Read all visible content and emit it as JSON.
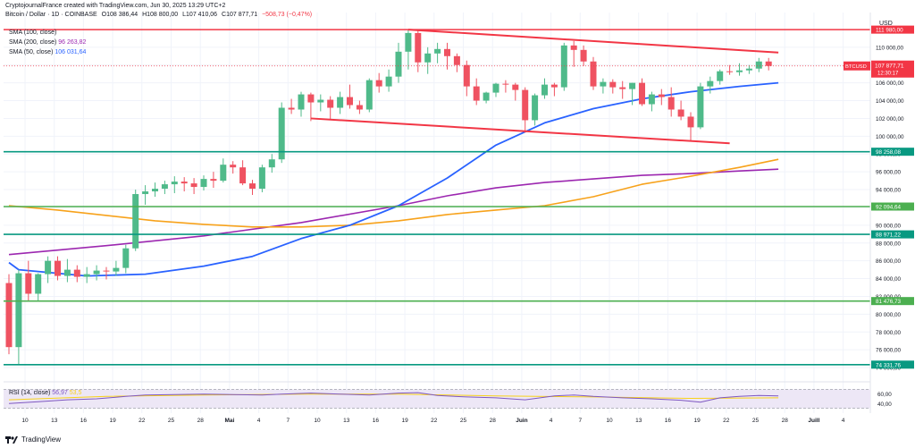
{
  "header": {
    "creator": "CryptojournalFrance created with TradingView.com, Jun 30, 2025 13:29 UTC+2",
    "symbol": "Bitcoin / Dollar · 1D · COINBASE",
    "o": "O108 386,44",
    "h": "H108 800,00",
    "l": "L107 410,06",
    "c": "C107 877,71",
    "chg": "−508,73 (−0,47%)"
  },
  "indicators": [
    {
      "label": "SMA (100, close)",
      "value": "",
      "color": "#f7a21b"
    },
    {
      "label": "SMA (200, close)",
      "value": "96 263,82",
      "color": "#9c27b0"
    },
    {
      "label": "SMA (50, close)",
      "value": "106 031,64",
      "color": "#2962ff"
    }
  ],
  "price_axis": {
    "currency": "USD",
    "ticks": [
      "110 000,00",
      "108 000,00",
      "106 000,00",
      "104 000,00",
      "102 000,00",
      "100 000,00",
      "98 000,00",
      "96 000,00",
      "94 000,00",
      "92 000,00",
      "90 000,00",
      "88 000,00",
      "86 000,00",
      "84 000,00",
      "82 000,00",
      "80 000,00",
      "78 000,00",
      "76 000,00",
      "74 000,00"
    ],
    "labels": [
      {
        "text": "111 980,00",
        "color": "#f23645"
      },
      {
        "text": "98 258,08",
        "color": "#089981"
      },
      {
        "text": "92 094,64",
        "color": "#4caf50"
      },
      {
        "text": "88 971,22",
        "color": "#089981"
      },
      {
        "text": "81 476,73",
        "color": "#4caf50"
      },
      {
        "text": "74 331,76",
        "color": "#089981"
      }
    ],
    "current": {
      "symbol": "BTCUSD",
      "price": "107 877,71",
      "countdown": "12:30:17",
      "color": "#f23645"
    },
    "rsi_ticks": [
      "60,00",
      "40,00"
    ]
  },
  "time_axis": [
    "10",
    "13",
    "16",
    "19",
    "22",
    "25",
    "28",
    "Mai",
    "4",
    "7",
    "10",
    "13",
    "16",
    "19",
    "22",
    "25",
    "28",
    "Juin",
    "4",
    "7",
    "10",
    "13",
    "16",
    "19",
    "22",
    "25",
    "28",
    "Juill",
    "4"
  ],
  "rsi": {
    "label": "RSI (14, close)",
    "value": "56,97",
    "sma_value": "53,5"
  },
  "footer": {
    "brand": "TradingView"
  },
  "chart_data": {
    "type": "candlestick",
    "interval": "1D",
    "ylim": [
      72500,
      113500
    ],
    "candles": [
      [
        83500,
        84500,
        75500,
        76300
      ],
      [
        76300,
        85000,
        74400,
        84600
      ],
      [
        84600,
        86000,
        81400,
        82300
      ],
      [
        82300,
        84600,
        81500,
        84500
      ],
      [
        84500,
        86500,
        83500,
        86000
      ],
      [
        86000,
        86500,
        83800,
        84300
      ],
      [
        84300,
        86200,
        83600,
        85000
      ],
      [
        85000,
        85500,
        83600,
        84200
      ],
      [
        84200,
        85300,
        83500,
        84500
      ],
      [
        84500,
        85500,
        83800,
        84900
      ],
      [
        84900,
        85300,
        83900,
        84800
      ],
      [
        84800,
        86000,
        84300,
        85200
      ],
      [
        85200,
        87800,
        84600,
        87400
      ],
      [
        87400,
        94000,
        87100,
        93500
      ],
      [
        93500,
        94500,
        92300,
        93800
      ],
      [
        93800,
        94800,
        93200,
        94100
      ],
      [
        94100,
        95000,
        93500,
        94600
      ],
      [
        94600,
        95500,
        93600,
        94900
      ],
      [
        94900,
        95400,
        93800,
        94700
      ],
      [
        94700,
        95300,
        93500,
        94300
      ],
      [
        94300,
        95600,
        93900,
        95200
      ],
      [
        95200,
        96000,
        94200,
        95000
      ],
      [
        95000,
        97500,
        94800,
        96800
      ],
      [
        96800,
        97200,
        95800,
        96500
      ],
      [
        96500,
        97300,
        94500,
        94700
      ],
      [
        94700,
        95100,
        93400,
        94100
      ],
      [
        94100,
        96800,
        93700,
        96500
      ],
      [
        96500,
        98000,
        95900,
        97400
      ],
      [
        97400,
        103800,
        97000,
        103200
      ],
      [
        103200,
        104200,
        102500,
        103000
      ],
      [
        103000,
        105000,
        102200,
        104700
      ],
      [
        104700,
        104900,
        101700,
        103800
      ],
      [
        103800,
        104700,
        102800,
        104100
      ],
      [
        104100,
        104500,
        101900,
        103200
      ],
      [
        103200,
        105000,
        102500,
        104400
      ],
      [
        104400,
        105800,
        103100,
        103500
      ],
      [
        103500,
        104000,
        102500,
        103000
      ],
      [
        103000,
        106500,
        102700,
        106300
      ],
      [
        106300,
        107100,
        104900,
        105600
      ],
      [
        105600,
        107500,
        105000,
        106700
      ],
      [
        106700,
        110500,
        106000,
        109500
      ],
      [
        109500,
        111980,
        107500,
        111600
      ],
      [
        111600,
        112000,
        107200,
        108300
      ],
      [
        108300,
        110000,
        107000,
        109300
      ],
      [
        109300,
        110500,
        108200,
        109800
      ],
      [
        109800,
        110500,
        107500,
        109000
      ],
      [
        109000,
        109300,
        107200,
        108000
      ],
      [
        108000,
        108500,
        104500,
        105600
      ],
      [
        105600,
        106500,
        103500,
        104000
      ],
      [
        104000,
        105000,
        103700,
        104900
      ],
      [
        104900,
        106000,
        104400,
        105900
      ],
      [
        105900,
        106300,
        104900,
        105800
      ],
      [
        105800,
        106000,
        104000,
        105200
      ],
      [
        105200,
        105500,
        100400,
        101800
      ],
      [
        101800,
        104800,
        101200,
        104600
      ],
      [
        104600,
        106500,
        104200,
        105800
      ],
      [
        105800,
        106000,
        104500,
        105500
      ],
      [
        105500,
        110500,
        105100,
        110200
      ],
      [
        110200,
        110700,
        107800,
        109700
      ],
      [
        109700,
        110200,
        107900,
        108400
      ],
      [
        108400,
        108900,
        105200,
        105600
      ],
      [
        105600,
        106500,
        104800,
        106100
      ],
      [
        106100,
        106400,
        104800,
        105500
      ],
      [
        105500,
        106200,
        104200,
        105300
      ],
      [
        105300,
        106000,
        103500,
        106000
      ],
      [
        106000,
        106500,
        103400,
        103600
      ],
      [
        103600,
        105000,
        102800,
        104700
      ],
      [
        104700,
        105300,
        103500,
        104400
      ],
      [
        104400,
        105500,
        102200,
        103000
      ],
      [
        103000,
        104000,
        101800,
        102200
      ],
      [
        102200,
        102700,
        99500,
        101000
      ],
      [
        101000,
        106000,
        100800,
        105600
      ],
      [
        105600,
        106700,
        104800,
        106200
      ],
      [
        106200,
        107500,
        105800,
        107300
      ],
      [
        107300,
        108000,
        106900,
        107200
      ],
      [
        107200,
        108200,
        106800,
        107400
      ],
      [
        107400,
        108000,
        107000,
        107600
      ],
      [
        107600,
        108800,
        107200,
        108400
      ],
      [
        108400,
        108800,
        107400,
        107900
      ]
    ],
    "sma50": [
      [
        0,
        85800
      ],
      [
        1,
        85000
      ],
      [
        8,
        84300
      ],
      [
        14,
        84500
      ],
      [
        20,
        85400
      ],
      [
        25,
        86500
      ],
      [
        30,
        88500
      ],
      [
        35,
        90000
      ],
      [
        40,
        92200
      ],
      [
        45,
        95300
      ],
      [
        50,
        99000
      ],
      [
        55,
        101500
      ],
      [
        60,
        103100
      ],
      [
        65,
        104200
      ],
      [
        70,
        105000
      ],
      [
        75,
        105600
      ],
      [
        79,
        106000
      ]
    ],
    "sma100": [
      [
        0,
        92200
      ],
      [
        5,
        91700
      ],
      [
        10,
        91100
      ],
      [
        15,
        90500
      ],
      [
        20,
        90100
      ],
      [
        25,
        89800
      ],
      [
        30,
        89800
      ],
      [
        35,
        90000
      ],
      [
        40,
        90500
      ],
      [
        45,
        91200
      ],
      [
        50,
        91700
      ],
      [
        55,
        92200
      ],
      [
        60,
        93200
      ],
      [
        65,
        94600
      ],
      [
        70,
        95500
      ],
      [
        75,
        96500
      ],
      [
        79,
        97400
      ]
    ],
    "sma200": [
      [
        0,
        86700
      ],
      [
        10,
        87700
      ],
      [
        20,
        88800
      ],
      [
        30,
        90300
      ],
      [
        40,
        92200
      ],
      [
        45,
        93300
      ],
      [
        50,
        94200
      ],
      [
        55,
        94800
      ],
      [
        60,
        95200
      ],
      [
        65,
        95600
      ],
      [
        70,
        95800
      ],
      [
        75,
        96100
      ],
      [
        79,
        96300
      ]
    ],
    "trendlines": [
      {
        "from": [
          41,
          111980
        ],
        "to": [
          79,
          109400
        ],
        "color": "#f23645"
      },
      {
        "from": [
          31,
          102000
        ],
        "to": [
          74,
          99200
        ],
        "color": "#f23645"
      }
    ],
    "hlines": [
      {
        "y": 111980,
        "color": "#f23645"
      },
      {
        "y": 98258.08,
        "color": "#089981"
      },
      {
        "y": 92094.64,
        "color": "#4caf50"
      },
      {
        "y": 88971.22,
        "color": "#089981"
      },
      {
        "y": 81476.73,
        "color": "#4caf50"
      },
      {
        "y": 74331.76,
        "color": "#089981"
      }
    ],
    "rsi_series": [
      [
        0,
        40
      ],
      [
        3,
        44
      ],
      [
        6,
        48
      ],
      [
        9,
        50
      ],
      [
        12,
        55
      ],
      [
        14,
        58
      ],
      [
        17,
        59
      ],
      [
        20,
        60
      ],
      [
        23,
        59
      ],
      [
        26,
        58
      ],
      [
        28,
        60
      ],
      [
        31,
        62
      ],
      [
        34,
        60
      ],
      [
        37,
        58
      ],
      [
        40,
        62
      ],
      [
        42,
        63
      ],
      [
        44,
        57
      ],
      [
        47,
        54
      ],
      [
        50,
        52
      ],
      [
        53,
        48
      ],
      [
        56,
        56
      ],
      [
        58,
        58
      ],
      [
        60,
        55
      ],
      [
        63,
        52
      ],
      [
        66,
        50
      ],
      [
        69,
        47
      ],
      [
        71,
        43
      ],
      [
        73,
        52
      ],
      [
        75,
        55
      ],
      [
        77,
        57
      ],
      [
        79,
        56
      ]
    ],
    "rsi_sma_series": [
      [
        0,
        48
      ],
      [
        10,
        55
      ],
      [
        20,
        58
      ],
      [
        30,
        60
      ],
      [
        40,
        60
      ],
      [
        50,
        56
      ],
      [
        60,
        54
      ],
      [
        70,
        51
      ],
      [
        79,
        52
      ]
    ]
  }
}
